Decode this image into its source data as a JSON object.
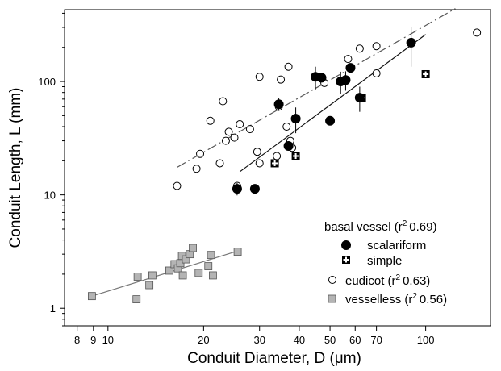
{
  "chart_data": {
    "type": "scatter",
    "xlabel": "Conduit Diameter, D (μm)",
    "ylabel": "Conduit Length, L (mm)",
    "x_scale": "log",
    "y_scale": "log",
    "xlim": [
      7.3,
      160
    ],
    "ylim": [
      0.7,
      430
    ],
    "x_ticks": [
      {
        "value": 8,
        "label": "8"
      },
      {
        "value": 9,
        "label": "9"
      },
      {
        "value": 10,
        "label": "10"
      },
      {
        "value": 20,
        "label": "20"
      },
      {
        "value": 30,
        "label": "30"
      },
      {
        "value": 40,
        "label": "40"
      },
      {
        "value": 50,
        "label": "50"
      },
      {
        "value": 60,
        "label": "60"
      },
      {
        "value": 70,
        "label": "70"
      },
      {
        "value": 100,
        "label": "100"
      }
    ],
    "y_ticks": [
      {
        "value": 1,
        "label": "1"
      },
      {
        "value": 10,
        "label": "10"
      },
      {
        "value": 100,
        "label": "100"
      }
    ],
    "grid": false,
    "legend": {
      "placement": "bottom-right",
      "header": "basal vessel (r",
      "header_r2": "0.69)",
      "scalariform": "scalariform",
      "simple": "simple",
      "eudicot": "eudicot (r",
      "eudicot_r2": "0.63)",
      "vesselless": "vesselless (r",
      "vesselless_r2": "0.56)",
      "sup": "2"
    },
    "series": [
      {
        "name": "scalariform",
        "marker": "filled-circle",
        "color": "#000000",
        "points": [
          {
            "x": 25.5,
            "y": 11.3,
            "err": 1.4
          },
          {
            "x": 29,
            "y": 11.3
          },
          {
            "x": 34.5,
            "y": 63,
            "err": 8
          },
          {
            "x": 37,
            "y": 27
          },
          {
            "x": 39,
            "y": 47,
            "err": 12
          },
          {
            "x": 45,
            "y": 110,
            "err": 25
          },
          {
            "x": 47,
            "y": 108
          },
          {
            "x": 50,
            "y": 45
          },
          {
            "x": 54,
            "y": 100,
            "err": 22
          },
          {
            "x": 56,
            "y": 103,
            "err": 20
          },
          {
            "x": 58,
            "y": 132
          },
          {
            "x": 62,
            "y": 72,
            "err": 18
          },
          {
            "x": 90,
            "y": 220,
            "err": 85
          }
        ]
      },
      {
        "name": "simple",
        "marker": "square-with-cross",
        "color": "#000000",
        "points": [
          {
            "x": 33.5,
            "y": 19
          },
          {
            "x": 39,
            "y": 22
          },
          {
            "x": 63,
            "y": 72
          },
          {
            "x": 100,
            "y": 116
          }
        ]
      },
      {
        "name": "eudicot",
        "marker": "open-circle",
        "color": "#000000",
        "points": [
          {
            "x": 16.5,
            "y": 12
          },
          {
            "x": 19,
            "y": 17
          },
          {
            "x": 19.5,
            "y": 23
          },
          {
            "x": 21,
            "y": 45
          },
          {
            "x": 22.5,
            "y": 19
          },
          {
            "x": 23,
            "y": 67
          },
          {
            "x": 23.5,
            "y": 30
          },
          {
            "x": 24,
            "y": 36
          },
          {
            "x": 25,
            "y": 32
          },
          {
            "x": 26,
            "y": 42
          },
          {
            "x": 25.5,
            "y": 12
          },
          {
            "x": 28,
            "y": 38
          },
          {
            "x": 29.5,
            "y": 24
          },
          {
            "x": 30,
            "y": 110
          },
          {
            "x": 30,
            "y": 19
          },
          {
            "x": 34,
            "y": 22
          },
          {
            "x": 34.5,
            "y": 60
          },
          {
            "x": 35,
            "y": 104
          },
          {
            "x": 36.5,
            "y": 40
          },
          {
            "x": 37,
            "y": 135
          },
          {
            "x": 37.5,
            "y": 30
          },
          {
            "x": 38,
            "y": 26
          },
          {
            "x": 48,
            "y": 97
          },
          {
            "x": 57,
            "y": 158
          },
          {
            "x": 62,
            "y": 195
          },
          {
            "x": 70,
            "y": 205
          },
          {
            "x": 70,
            "y": 118
          },
          {
            "x": 145,
            "y": 270
          }
        ]
      },
      {
        "name": "vesselless",
        "marker": "gray-square",
        "color": "#b4b4b4",
        "points": [
          {
            "x": 8.9,
            "y": 1.28
          },
          {
            "x": 12.3,
            "y": 1.2
          },
          {
            "x": 12.4,
            "y": 1.9
          },
          {
            "x": 13.5,
            "y": 1.6
          },
          {
            "x": 13.8,
            "y": 1.95
          },
          {
            "x": 15.6,
            "y": 2.15
          },
          {
            "x": 16.2,
            "y": 2.45
          },
          {
            "x": 16.6,
            "y": 2.25
          },
          {
            "x": 16.9,
            "y": 2.5
          },
          {
            "x": 17.1,
            "y": 2.9
          },
          {
            "x": 17.2,
            "y": 1.95
          },
          {
            "x": 17.6,
            "y": 2.7
          },
          {
            "x": 18.1,
            "y": 3.0
          },
          {
            "x": 18.5,
            "y": 3.4
          },
          {
            "x": 19.3,
            "y": 2.05
          },
          {
            "x": 20.7,
            "y": 2.35
          },
          {
            "x": 21.1,
            "y": 2.95
          },
          {
            "x": 21.4,
            "y": 1.95
          },
          {
            "x": 25.6,
            "y": 3.15
          }
        ]
      }
    ],
    "fits": [
      {
        "series": "eudicot",
        "style": "dash-dot",
        "color": "#555555",
        "from": [
          16.5,
          17.5
        ],
        "to": [
          124,
          440
        ]
      },
      {
        "series": "basal vessel",
        "style": "solid",
        "color": "#111111",
        "from": [
          26,
          16
        ],
        "to": [
          100,
          260
        ]
      },
      {
        "series": "vesselless",
        "style": "solid",
        "color": "#777777",
        "from": [
          8.9,
          1.28
        ],
        "to": [
          25.6,
          3.2
        ]
      }
    ]
  }
}
